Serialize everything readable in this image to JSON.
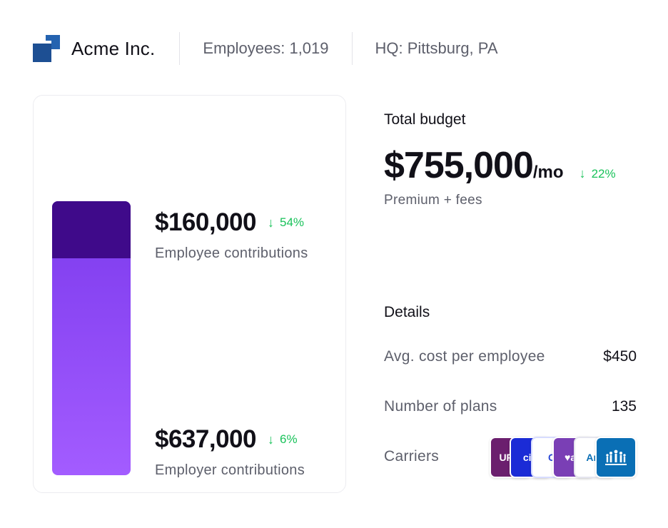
{
  "header": {
    "company": "Acme Inc.",
    "employees": "Employees: 1,019",
    "hq": "HQ: Pittsburg, PA"
  },
  "contributions": {
    "employee": {
      "amount": "$160,000",
      "change": "54%",
      "label": "Employee contributions"
    },
    "employer": {
      "amount": "$637,000",
      "change": "6%",
      "label": "Employer contributions"
    }
  },
  "budget": {
    "title": "Total budget",
    "amount": "$755,000",
    "unit": "/mo",
    "change": "22%",
    "subtitle": "Premium + fees"
  },
  "details": {
    "title": "Details",
    "rows": [
      {
        "label": "Avg. cost per employee",
        "value": "$450"
      },
      {
        "label": "Number of plans",
        "value": "135"
      },
      {
        "label": "Carriers",
        "value": ""
      }
    ]
  },
  "carriers": [
    {
      "name": "UPMC",
      "text": "UPM"
    },
    {
      "name": "Cigna",
      "text": "cig"
    },
    {
      "name": "Carrier",
      "text": "C"
    },
    {
      "name": "Aetna",
      "text": "♥ae"
    },
    {
      "name": "Anthem",
      "text": "Ant"
    },
    {
      "name": "Kaiser",
      "text": ""
    }
  ],
  "colors": {
    "positive": "#19c25a",
    "bar_top": "#3f0a8a",
    "bar_main": "#7c3aed",
    "logo": "#1d4f93"
  }
}
